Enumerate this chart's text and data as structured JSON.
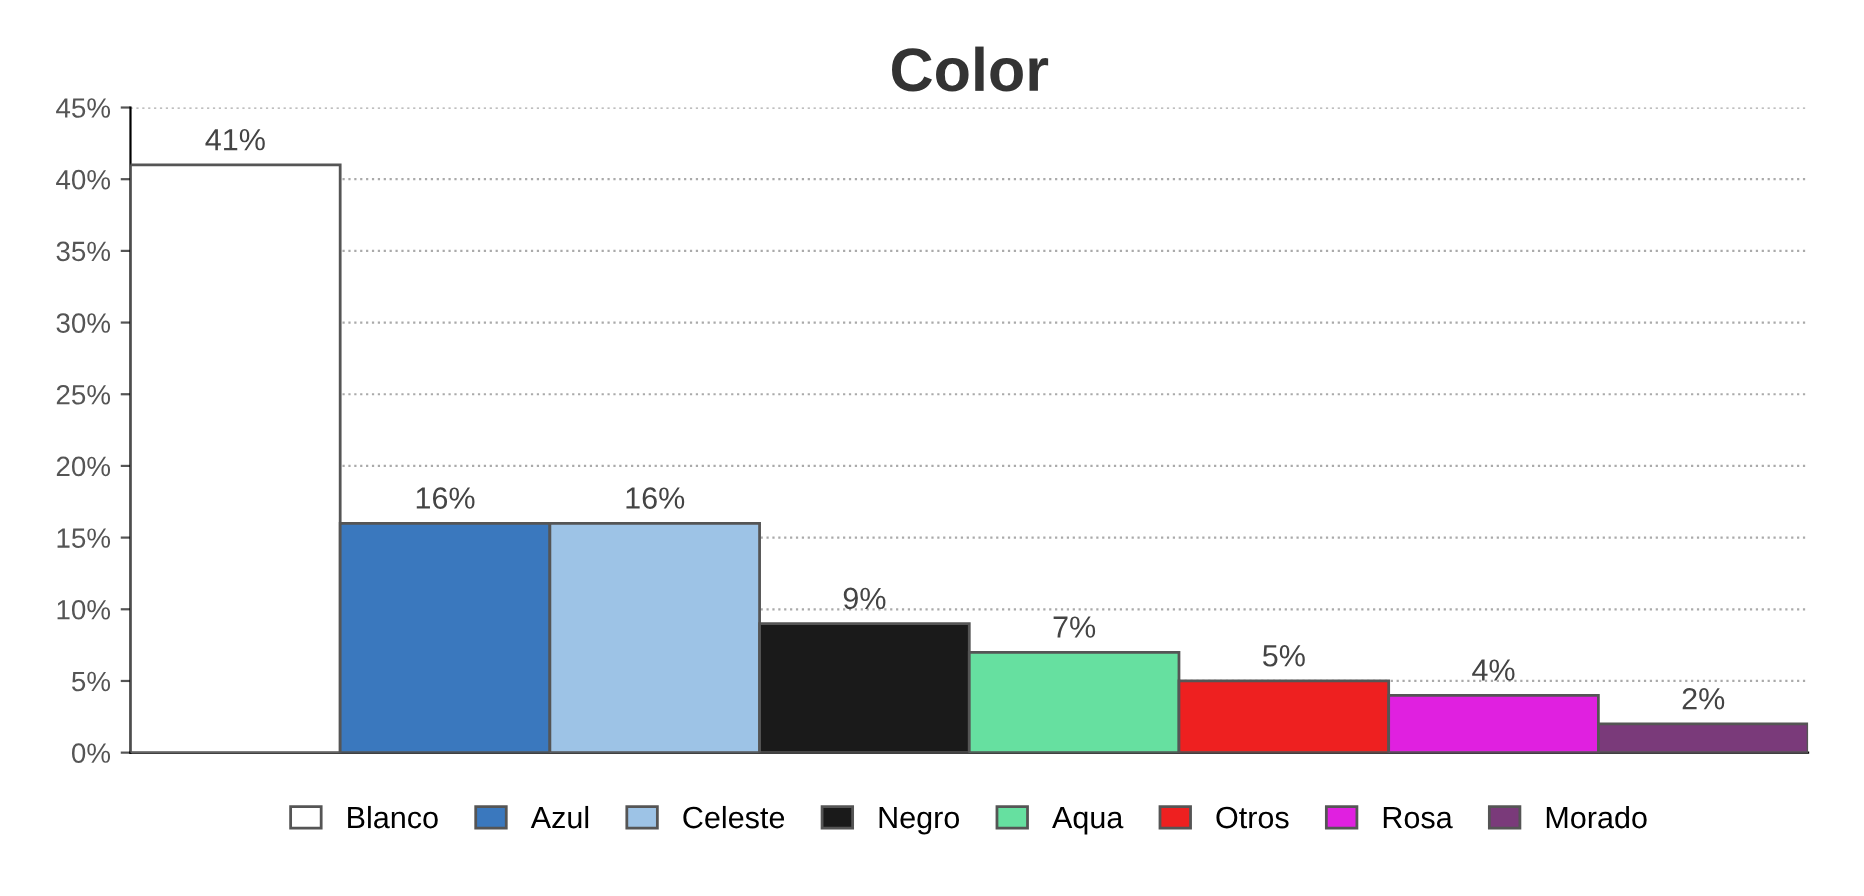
{
  "chart_data": {
    "type": "bar",
    "title": "Color",
    "categories": [
      null
    ],
    "series": [
      {
        "name": "Blanco",
        "color": "#ffffff",
        "values": [
          41
        ],
        "value_labels": [
          "41%"
        ]
      },
      {
        "name": "Azul",
        "color": "#3a78be",
        "values": [
          16
        ],
        "value_labels": [
          "16%"
        ]
      },
      {
        "name": "Celeste",
        "color": "#9dc3e6",
        "values": [
          16
        ],
        "value_labels": [
          "16%"
        ]
      },
      {
        "name": "Negro",
        "color": "#1a1a1a",
        "values": [
          9
        ],
        "value_labels": [
          "9%"
        ]
      },
      {
        "name": "Aqua",
        "color": "#66e0a0",
        "values": [
          7
        ],
        "value_labels": [
          "7%"
        ]
      },
      {
        "name": "Otros",
        "color": "#ee2020",
        "values": [
          5
        ],
        "value_labels": [
          "5%"
        ]
      },
      {
        "name": "Rosa",
        "color": "#e020e0",
        "values": [
          4
        ],
        "value_labels": [
          "4%"
        ]
      },
      {
        "name": "Morado",
        "color": "#7a3a7a",
        "values": [
          2
        ],
        "value_labels": [
          "2%"
        ]
      }
    ],
    "ylim": [
      0,
      45
    ],
    "yticks": [
      {
        "value": 0,
        "label": "0%"
      },
      {
        "value": 5,
        "label": "5%"
      },
      {
        "value": 10,
        "label": "10%"
      },
      {
        "value": 15,
        "label": "15%"
      },
      {
        "value": 20,
        "label": "20%"
      },
      {
        "value": 25,
        "label": "25%"
      },
      {
        "value": 30,
        "label": "30%"
      },
      {
        "value": 35,
        "label": "35%"
      },
      {
        "value": 40,
        "label": "40%"
      },
      {
        "value": 45,
        "label": "45%"
      }
    ],
    "grid": true,
    "legend": "bottom",
    "tick_labels": "y"
  }
}
